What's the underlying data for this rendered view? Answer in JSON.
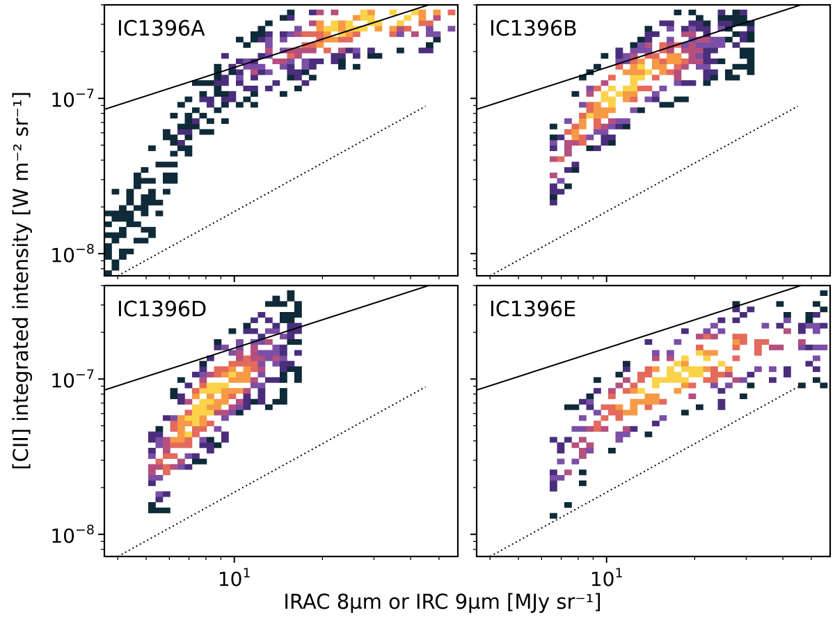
{
  "chart_data": {
    "type": "heatmap",
    "xlabel": "IRAC 8µm or IRC 9µm [MJy sr⁻¹]",
    "ylabel": "[CII] integrated intensity [W m⁻² sr⁻¹]",
    "x_scale": "log",
    "y_scale": "log",
    "xlim": [
      3.6,
      58
    ],
    "ylim": [
      7.2e-09,
      4e-07
    ],
    "x_tick_labels": [
      {
        "value": 10,
        "base": "10",
        "exp": "1"
      }
    ],
    "y_tick_labels": [
      {
        "value": 1e-08,
        "base": "10",
        "exp": "−8"
      },
      {
        "value": 1e-07,
        "base": "10",
        "exp": "−7"
      }
    ],
    "reference_lines": [
      {
        "style": "solid",
        "points": [
          [
            3.6,
            8.5e-08
          ],
          [
            58,
            4.6e-07
          ]
        ]
      },
      {
        "style": "dotted",
        "points": [
          [
            4.0,
            7.2e-09
          ],
          [
            45,
            8.9e-08
          ]
        ]
      }
    ],
    "colormap": [
      "#0f2a38",
      "#4a2e7c",
      "#7b4fa6",
      "#b5507e",
      "#e46a5c",
      "#f79a45",
      "#fbd34a"
    ],
    "panels": [
      {
        "name": "IC1396A",
        "ridge": [
          [
            3.7,
            1.3e-08
          ],
          [
            4.6,
            1.7e-08
          ],
          [
            5.3,
            2.6e-08
          ],
          [
            6.0,
            4.2e-08
          ],
          [
            7.5,
            8e-08
          ],
          [
            10,
            1.3e-07
          ],
          [
            14,
            1.9e-07
          ],
          [
            20,
            2.6e-07
          ],
          [
            27,
            3.1e-07
          ],
          [
            37,
            3.5e-07
          ],
          [
            55,
            3.9e-07
          ]
        ],
        "spread_dex": 0.12,
        "peak_x": 30,
        "peak_width_dex": 0.28,
        "coverage": 0.55
      },
      {
        "name": "IC1396B",
        "ridge": [
          [
            6.8,
            3.6e-08
          ],
          [
            7.5,
            5.5e-08
          ],
          [
            9,
            8e-08
          ],
          [
            11,
            1.15e-07
          ],
          [
            14,
            1.5e-07
          ],
          [
            18,
            1.9e-07
          ],
          [
            24,
            2.4e-07
          ],
          [
            30,
            2.7e-07
          ]
        ],
        "spread_dex": 0.13,
        "peak_x": 11.5,
        "peak_width_dex": 0.2,
        "coverage": 0.7
      },
      {
        "name": "IC1396D",
        "ridge": [
          [
            5.6,
            2.8e-08
          ],
          [
            6.3,
            4e-08
          ],
          [
            7.3,
            5.8e-08
          ],
          [
            8.5,
            7.8e-08
          ],
          [
            10,
            1e-07
          ],
          [
            12,
            1.25e-07
          ],
          [
            14,
            1.5e-07
          ],
          [
            16,
            1.7e-07
          ]
        ],
        "spread_dex": 0.15,
        "peak_x": 8.2,
        "peak_width_dex": 0.16,
        "coverage": 0.82
      },
      {
        "name": "IC1396E",
        "ridge": [
          [
            6.8,
            2.6e-08
          ],
          [
            8,
            3.9e-08
          ],
          [
            10,
            5.5e-08
          ],
          [
            13,
            7.8e-08
          ],
          [
            17,
            1.05e-07
          ],
          [
            23,
            1.35e-07
          ],
          [
            32,
            1.6e-07
          ],
          [
            45,
            1.7e-07
          ],
          [
            57,
            1.75e-07
          ]
        ],
        "spread_dex": 0.14,
        "peak_x": 18,
        "peak_width_dex": 0.3,
        "coverage": 0.42
      }
    ]
  }
}
